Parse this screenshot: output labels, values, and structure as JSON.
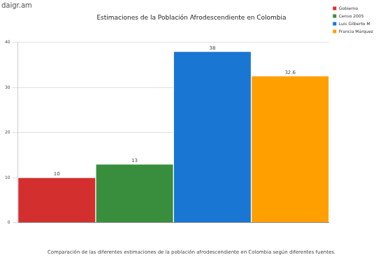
{
  "chart_data": {
    "type": "bar",
    "title": "Estimaciones de la Población Afrodescendiente en Colombia",
    "subtitle": "Comparación de las diferentes estimaciones de la población afrodescendiente en Colombia según diferentes fuentes.",
    "annotation": "daigr.am",
    "categories": [
      null
    ],
    "series": [
      {
        "name": "Gobierno",
        "color": "#d32f2f",
        "values": [
          10
        ]
      },
      {
        "name": "Censo 2005",
        "color": "#388e3c",
        "values": [
          13
        ]
      },
      {
        "name": "Luis Gilberto M",
        "color": "#1976d2",
        "values": [
          38
        ]
      },
      {
        "name": "Francia Márquez",
        "color": "#ff9f00",
        "values": [
          32.6
        ]
      }
    ],
    "ylim": [
      0,
      40
    ],
    "yticks": [
      0,
      10,
      20,
      30,
      40
    ],
    "grid": true,
    "legend": "right",
    "data_labels": true,
    "tick_labels": "y"
  }
}
